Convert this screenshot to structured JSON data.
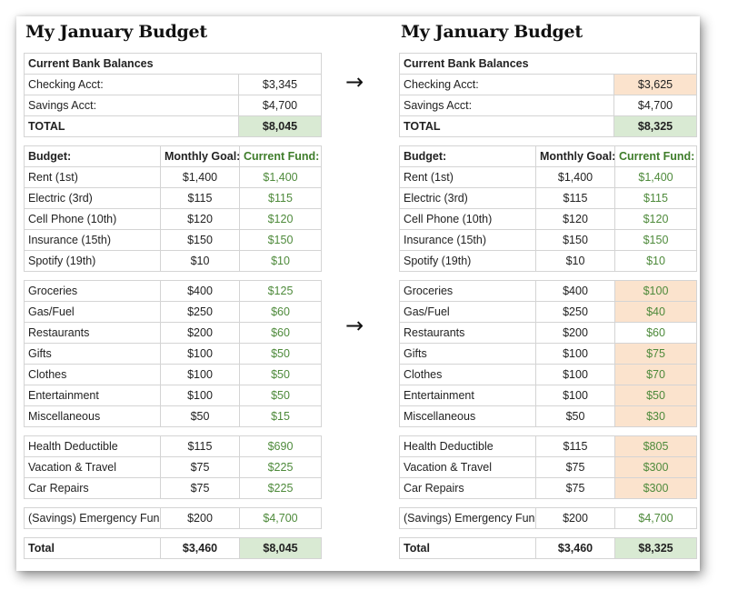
{
  "left": {
    "title": "My January Budget",
    "bank": {
      "header": "Current Bank Balances",
      "rows": [
        {
          "label": "Checking Acct:",
          "value": "$3,345"
        },
        {
          "label": "Savings Acct:",
          "value": "$4,700"
        }
      ],
      "total_label": "TOTAL",
      "total_value": "$8,045"
    },
    "budget_header": {
      "label": "Budget:",
      "goal": "Monthly Goal:",
      "fund": "Current Fund:"
    },
    "group1": [
      {
        "label": "Rent (1st)",
        "goal": "$1,400",
        "fund": "$1,400"
      },
      {
        "label": "Electric (3rd)",
        "goal": "$115",
        "fund": "$115"
      },
      {
        "label": "Cell Phone (10th)",
        "goal": "$120",
        "fund": "$120"
      },
      {
        "label": "Insurance (15th)",
        "goal": "$150",
        "fund": "$150"
      },
      {
        "label": "Spotify (19th)",
        "goal": "$10",
        "fund": "$10"
      }
    ],
    "group2": [
      {
        "label": "Groceries",
        "goal": "$400",
        "fund": "$125"
      },
      {
        "label": "Gas/Fuel",
        "goal": "$250",
        "fund": "$60"
      },
      {
        "label": "Restaurants",
        "goal": "$200",
        "fund": "$60"
      },
      {
        "label": "Gifts",
        "goal": "$100",
        "fund": "$50"
      },
      {
        "label": "Clothes",
        "goal": "$100",
        "fund": "$50"
      },
      {
        "label": "Entertainment",
        "goal": "$100",
        "fund": "$50"
      },
      {
        "label": "Miscellaneous",
        "goal": "$50",
        "fund": "$15"
      }
    ],
    "group3": [
      {
        "label": "Health Deductible",
        "goal": "$115",
        "fund": "$690"
      },
      {
        "label": "Vacation & Travel",
        "goal": "$75",
        "fund": "$225"
      },
      {
        "label": "Car Repairs",
        "goal": "$75",
        "fund": "$225"
      }
    ],
    "emergency": {
      "label": "(Savings) Emergency Fund",
      "goal": "$200",
      "fund": "$4,700"
    },
    "total": {
      "label": "Total",
      "goal": "$3,460",
      "fund": "$8,045"
    }
  },
  "right": {
    "title": "My January Budget",
    "bank": {
      "header": "Current Bank Balances",
      "rows": [
        {
          "label": "Checking Acct:",
          "value": "$3,625"
        },
        {
          "label": "Savings Acct:",
          "value": "$4,700"
        }
      ],
      "total_label": "TOTAL",
      "total_value": "$8,325"
    },
    "budget_header": {
      "label": "Budget:",
      "goal": "Monthly Goal:",
      "fund": "Current Fund:"
    },
    "group1": [
      {
        "label": "Rent (1st)",
        "goal": "$1,400",
        "fund": "$1,400"
      },
      {
        "label": "Electric (3rd)",
        "goal": "$115",
        "fund": "$115"
      },
      {
        "label": "Cell Phone (10th)",
        "goal": "$120",
        "fund": "$120"
      },
      {
        "label": "Insurance (15th)",
        "goal": "$150",
        "fund": "$150"
      },
      {
        "label": "Spotify (19th)",
        "goal": "$10",
        "fund": "$10"
      }
    ],
    "group2": [
      {
        "label": "Groceries",
        "goal": "$400",
        "fund": "$100"
      },
      {
        "label": "Gas/Fuel",
        "goal": "$250",
        "fund": "$40"
      },
      {
        "label": "Restaurants",
        "goal": "$200",
        "fund": "$60"
      },
      {
        "label": "Gifts",
        "goal": "$100",
        "fund": "$75"
      },
      {
        "label": "Clothes",
        "goal": "$100",
        "fund": "$70"
      },
      {
        "label": "Entertainment",
        "goal": "$100",
        "fund": "$50"
      },
      {
        "label": "Miscellaneous",
        "goal": "$50",
        "fund": "$30"
      }
    ],
    "group3": [
      {
        "label": "Health Deductible",
        "goal": "$115",
        "fund": "$805"
      },
      {
        "label": "Vacation & Travel",
        "goal": "$75",
        "fund": "$300"
      },
      {
        "label": "Car Repairs",
        "goal": "$75",
        "fund": "$300"
      }
    ],
    "emergency": {
      "label": "(Savings) Emergency Fund",
      "goal": "$200",
      "fund": "$4,700"
    },
    "total": {
      "label": "Total",
      "goal": "$3,460",
      "fund": "$8,325"
    }
  },
  "arrows": {
    "glyph": "→"
  },
  "colors": {
    "fund_green": "#4e8a3b",
    "total_fill": "#d9ead3",
    "changed_fill": "#fbe3cd"
  }
}
